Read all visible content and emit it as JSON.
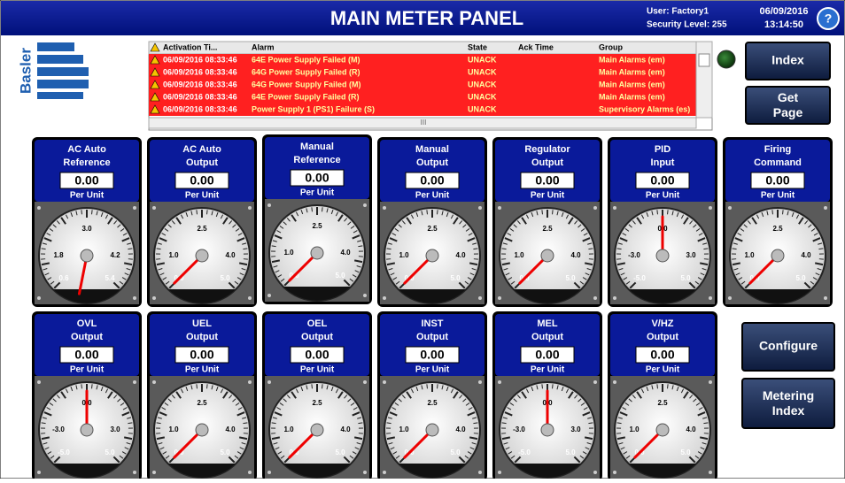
{
  "header": {
    "title": "MAIN METER PANEL",
    "user": "User: Factory1",
    "security": "Security Level: 255",
    "date": "06/09/2016",
    "time": "13:14:50",
    "help": "?"
  },
  "logo": "Basler",
  "alarm_table": {
    "columns": [
      "Activation Ti...",
      "Alarm",
      "State",
      "Ack Time",
      "Group"
    ],
    "scroll_mark": "III",
    "rows": [
      {
        "time": "06/09/2016 08:33:46",
        "alarm": "64E Power Supply Failed (M)",
        "state": "UNACK",
        "group": "Main Alarms (em)"
      },
      {
        "time": "06/09/2016 08:33:46",
        "alarm": "64G Power Supply Failed (R)",
        "state": "UNACK",
        "group": "Main Alarms (em)"
      },
      {
        "time": "06/09/2016 08:33:46",
        "alarm": "64G Power Supply Failed (M)",
        "state": "UNACK",
        "group": "Main Alarms (em)"
      },
      {
        "time": "06/09/2016 08:33:46",
        "alarm": "64E Power Supply Failed (R)",
        "state": "UNACK",
        "group": "Main Alarms (em)"
      },
      {
        "time": "06/09/2016 08:33:46",
        "alarm": "Power Supply 1 (PS1) Failure (S)",
        "state": "UNACK",
        "group": "Supervisory Alarms (es)"
      }
    ]
  },
  "buttons": [
    "Index",
    "Get Page",
    "Configure",
    "Metering Index"
  ],
  "gauges": [
    {
      "title": [
        "AC Auto",
        "Reference"
      ],
      "value": "0.00",
      "unit": "Per Unit",
      "scale": [
        "0.6",
        "1.8",
        "3.0",
        "4.2",
        "5.4"
      ]
    },
    {
      "title": [
        "AC Auto",
        "Output"
      ],
      "value": "0.00",
      "unit": "Per Unit",
      "scale": [
        "0.0",
        "1.0",
        "2.5",
        "4.0",
        "5.0"
      ]
    },
    {
      "title": [
        "Manual",
        "Reference"
      ],
      "value": "0.00",
      "unit": "Per Unit",
      "scale": [
        "0.0",
        "1.0",
        "2.5",
        "4.0",
        "5.0"
      ]
    },
    {
      "title": [
        "Manual",
        "Output"
      ],
      "value": "0.00",
      "unit": "Per Unit",
      "scale": [
        "0.0",
        "1.0",
        "2.5",
        "4.0",
        "5.0"
      ]
    },
    {
      "title": [
        "Regulator",
        "Output"
      ],
      "value": "0.00",
      "unit": "Per Unit",
      "scale": [
        "0.0",
        "1.0",
        "2.5",
        "4.0",
        "5.0"
      ]
    },
    {
      "title": [
        "PID",
        "Input"
      ],
      "value": "0.00",
      "unit": "Per Unit",
      "scale": [
        "-5.0",
        "-3.0",
        "0.0",
        "3.0",
        "5.0"
      ]
    },
    {
      "title": [
        "Firing",
        "Command"
      ],
      "value": "0.00",
      "unit": "Per Unit",
      "scale": [
        "0.0",
        "1.0",
        "2.5",
        "4.0",
        "5.0"
      ]
    },
    {
      "title": [
        "OVL",
        "Output"
      ],
      "value": "0.00",
      "unit": "Per Unit",
      "scale": [
        "-5.0",
        "-3.0",
        "0.0",
        "3.0",
        "5.0"
      ]
    },
    {
      "title": [
        "UEL",
        "Output"
      ],
      "value": "0.00",
      "unit": "Per Unit",
      "scale": [
        "0.0",
        "1.0",
        "2.5",
        "4.0",
        "5.0"
      ]
    },
    {
      "title": [
        "OEL",
        "Output"
      ],
      "value": "0.00",
      "unit": "Per Unit",
      "scale": [
        "0.0",
        "1.0",
        "2.5",
        "4.0",
        "5.0"
      ]
    },
    {
      "title": [
        "INST",
        "Output"
      ],
      "value": "0.00",
      "unit": "Per Unit",
      "scale": [
        "0.0",
        "1.0",
        "2.5",
        "4.0",
        "5.0"
      ]
    },
    {
      "title": [
        "MEL",
        "Output"
      ],
      "value": "0.00",
      "unit": "Per Unit",
      "scale": [
        "-5.0",
        "-3.0",
        "0.0",
        "3.0",
        "5.0"
      ]
    },
    {
      "title": [
        "V/HZ",
        "Output"
      ],
      "value": "0.00",
      "unit": "Per Unit",
      "scale": [
        "0.0",
        "1.0",
        "2.5",
        "4.0",
        "5.0"
      ]
    }
  ]
}
